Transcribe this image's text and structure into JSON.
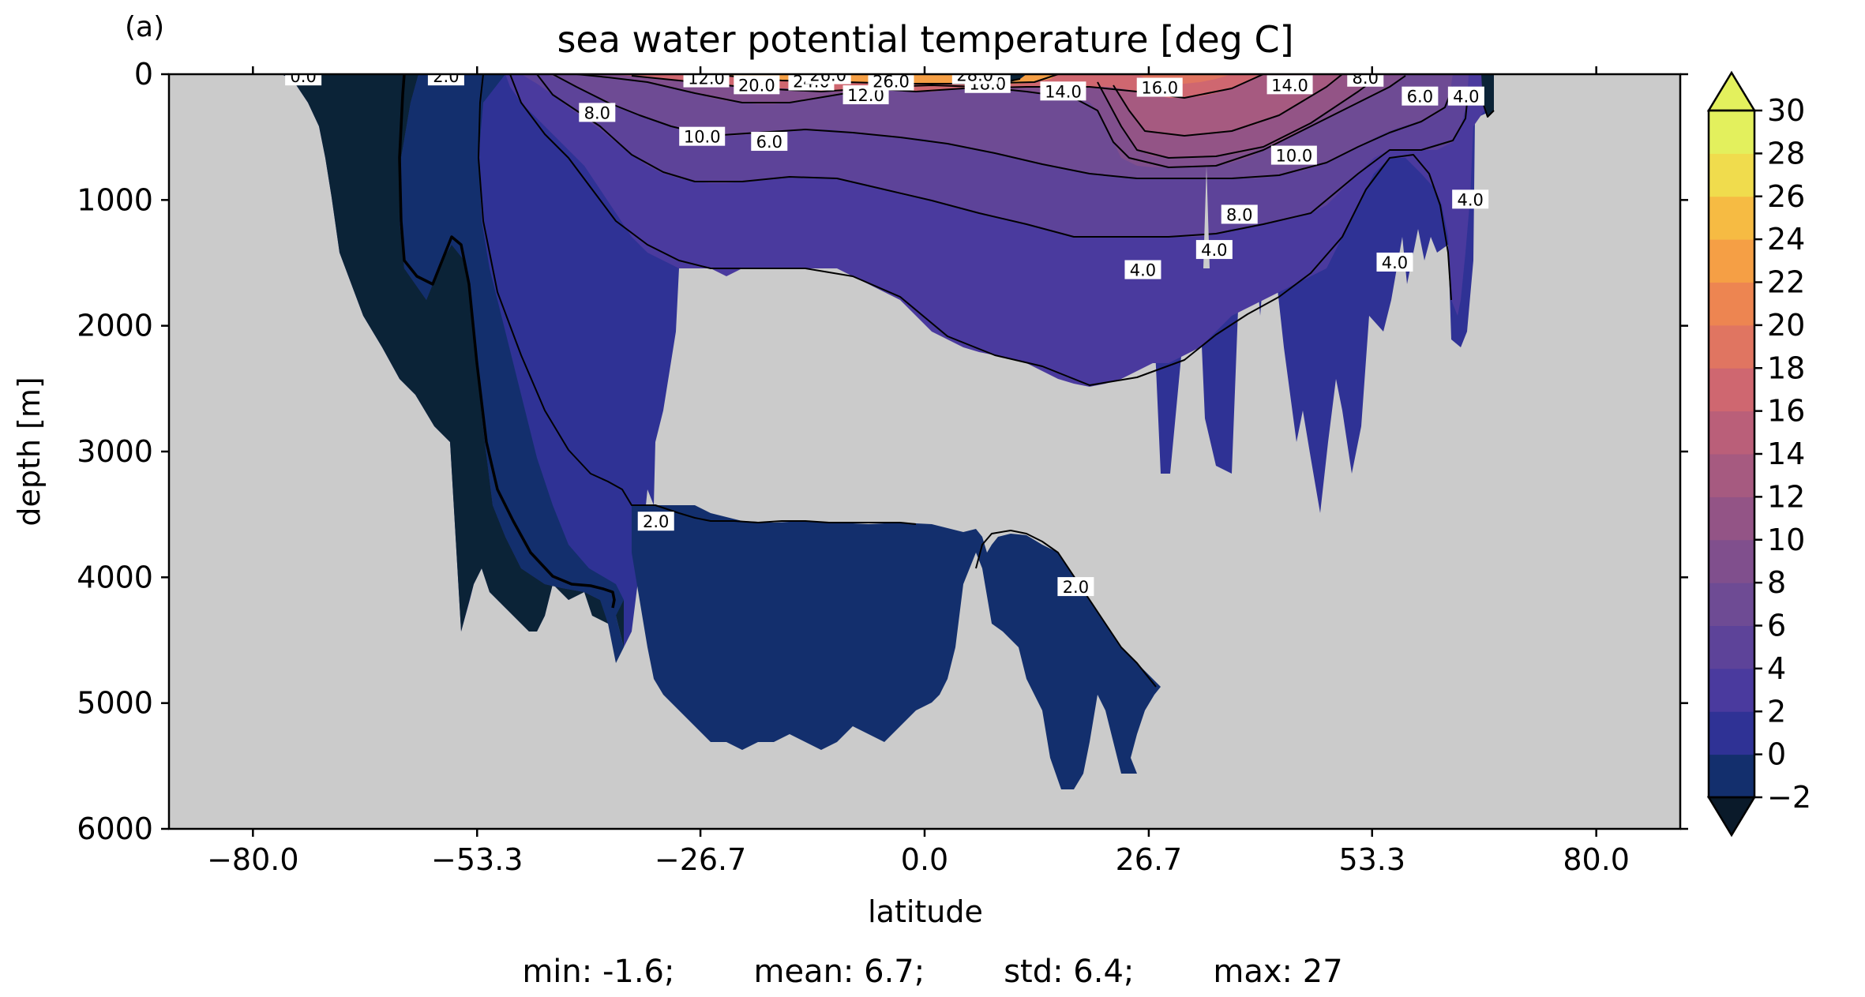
{
  "panel_label": "(a)",
  "stats": {
    "min": "min: -1.6;",
    "mean": "mean: 6.7;",
    "std": "std: 6.4;",
    "max": "max: 27"
  },
  "colors": {
    "land": "#cbcbcb",
    "colorbar": [
      "#0b2337",
      "#132f6d",
      "#2f3295",
      "#4a3a9e",
      "#5d4399",
      "#6e4b94",
      "#804f8d",
      "#935486",
      "#a65a80",
      "#ba5f79",
      "#cf6770",
      "#e07561",
      "#ed8551",
      "#f59f45",
      "#f6bb43",
      "#f0dc4d",
      "#e3f05d"
    ]
  },
  "chart_data": {
    "type": "heatmap",
    "title": "sea water potential temperature [deg C]",
    "xlabel": "latitude",
    "ylabel": "depth [m]",
    "xlim": [
      -90,
      90
    ],
    "ylim": [
      6000,
      0
    ],
    "x_ticks": [
      -80.0,
      -53.3,
      -26.7,
      0.0,
      26.7,
      53.3,
      80.0
    ],
    "x_tick_labels": [
      "−80.0",
      "−53.3",
      "−26.7",
      "0.0",
      "26.7",
      "53.3",
      "80.0"
    ],
    "y_ticks": [
      0,
      1000,
      2000,
      3000,
      4000,
      5000,
      6000
    ],
    "y_tick_labels": [
      "0",
      "1000",
      "2000",
      "3000",
      "4000",
      "5000",
      "6000"
    ],
    "colorbar": {
      "levels": [
        -2,
        0,
        2,
        4,
        6,
        8,
        10,
        12,
        14,
        16,
        18,
        20,
        22,
        24,
        26,
        28,
        30
      ],
      "tick_labels": [
        "−2",
        "0",
        "2",
        "4",
        "6",
        "8",
        "10",
        "12",
        "14",
        "16",
        "18",
        "20",
        "22",
        "24",
        "26",
        "28",
        "30"
      ],
      "extend": "both"
    },
    "contour_labels": [
      {
        "text": "2.0",
        "x": -32.0,
        "y": 3560
      },
      {
        "text": "2.0",
        "x": 18.0,
        "y": 4080
      },
      {
        "text": "4.0",
        "x": 26.0,
        "y": 1560
      },
      {
        "text": "4.0",
        "x": 34.5,
        "y": 1400
      },
      {
        "text": "4.0",
        "x": 56.0,
        "y": 1500
      },
      {
        "text": "4.0",
        "x": 65.0,
        "y": 1000
      },
      {
        "text": "4.0",
        "x": 64.5,
        "y": 180
      },
      {
        "text": "6.0",
        "x": -18.5,
        "y": 540
      },
      {
        "text": "6.0",
        "x": 59.0,
        "y": 180
      },
      {
        "text": "8.0",
        "x": 37.5,
        "y": 1120
      },
      {
        "text": "8.0",
        "x": -39.0,
        "y": 310
      },
      {
        "text": "8.0",
        "x": 52.5,
        "y": 30
      },
      {
        "text": "10.0",
        "x": -26.5,
        "y": 500
      },
      {
        "text": "10.0",
        "x": 44.0,
        "y": 650
      },
      {
        "text": "12.0",
        "x": -7.0,
        "y": 170
      },
      {
        "text": "14.0",
        "x": 16.5,
        "y": 140
      },
      {
        "text": "14.0",
        "x": 43.5,
        "y": 90
      },
      {
        "text": "16.0",
        "x": 28.0,
        "y": 110
      },
      {
        "text": "20.0",
        "x": -20.0,
        "y": 90
      },
      {
        "text": "24.0",
        "x": -13.5,
        "y": 60
      },
      {
        "text": "26.0",
        "x": -4.0,
        "y": 60
      },
      {
        "text": "18.0",
        "x": 7.5,
        "y": 80
      },
      {
        "text": "12.0",
        "x": -26.0,
        "y": 35
      },
      {
        "text": "28.0",
        "x": 6.0,
        "y": 10
      },
      {
        "text": "26.0",
        "x": -11.5,
        "y": 10
      },
      {
        "text": "2.0",
        "x": -57.0,
        "y": 20
      },
      {
        "text": "0.0",
        "x": -74.0,
        "y": 20
      }
    ]
  }
}
